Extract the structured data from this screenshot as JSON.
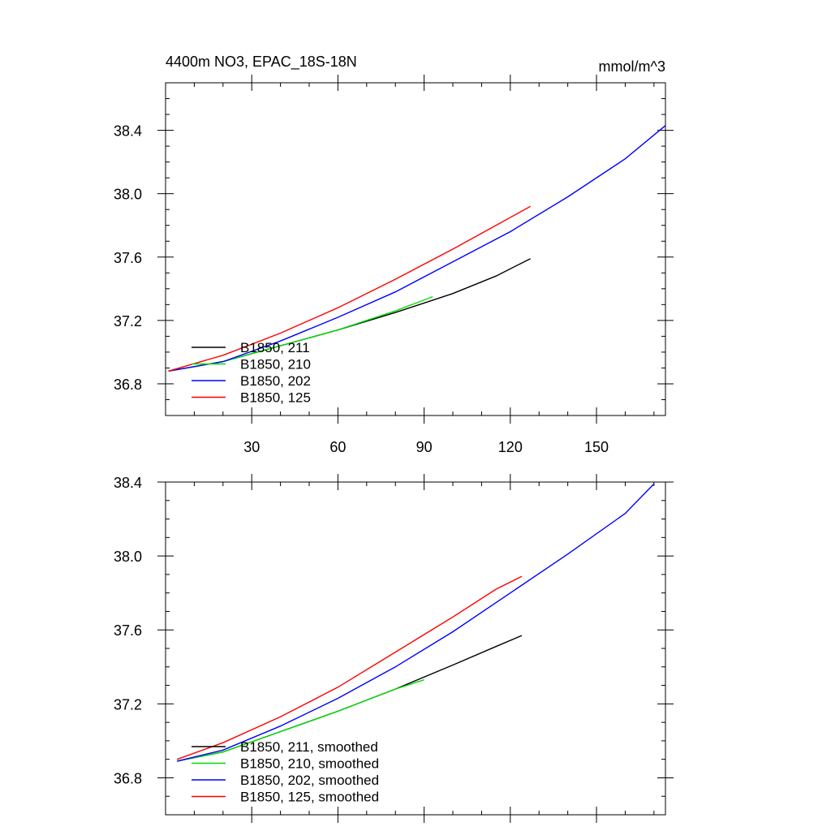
{
  "chart_data": [
    {
      "type": "line",
      "title": "4400m NO3, EPAC_18S-18N",
      "units": "mmol/m^3",
      "xlim": [
        0,
        174
      ],
      "ylim": [
        36.6,
        38.7
      ],
      "x_ticks": [
        30,
        60,
        90,
        120,
        150
      ],
      "y_ticks": [
        36.8,
        37.2,
        37.6,
        38.0,
        38.4
      ],
      "x_tick_labels": [
        "30",
        "60",
        "90",
        "120",
        "150"
      ],
      "y_tick_labels": [
        "36.8",
        "37.2",
        "37.6",
        "38.0",
        "38.4"
      ],
      "legend_position": "bottom-left",
      "series": [
        {
          "name": "B1850, 211",
          "color": "#000000",
          "x": [
            1,
            20,
            40,
            60,
            80,
            100,
            115,
            127
          ],
          "values": [
            36.88,
            36.94,
            37.04,
            37.14,
            37.25,
            37.37,
            37.48,
            37.59
          ]
        },
        {
          "name": "B1850, 210",
          "color": "#00dd00",
          "x": [
            1,
            20,
            40,
            60,
            80,
            93
          ],
          "values": [
            36.88,
            36.94,
            37.04,
            37.14,
            37.26,
            37.35
          ]
        },
        {
          "name": "B1850, 202",
          "color": "#0000ff",
          "x": [
            1,
            20,
            40,
            60,
            80,
            100,
            120,
            140,
            160,
            174
          ],
          "values": [
            36.88,
            36.94,
            37.07,
            37.22,
            37.38,
            37.57,
            37.76,
            37.98,
            38.22,
            38.43
          ]
        },
        {
          "name": "B1850, 125",
          "color": "#ff0000",
          "x": [
            1,
            20,
            40,
            60,
            80,
            100,
            115,
            127
          ],
          "values": [
            36.88,
            36.98,
            37.12,
            37.28,
            37.46,
            37.65,
            37.8,
            37.92
          ]
        }
      ]
    },
    {
      "type": "line",
      "title": "",
      "xlim": [
        0,
        174
      ],
      "ylim": [
        36.6,
        38.4
      ],
      "x_ticks": [
        30,
        60,
        90,
        120,
        150
      ],
      "y_ticks": [
        36.8,
        37.2,
        37.6,
        38.0,
        38.4
      ],
      "y_tick_labels": [
        "36.8",
        "37.2",
        "37.6",
        "38.0",
        "38.4"
      ],
      "legend_position": "bottom-left",
      "series": [
        {
          "name": "B1850, 211, smoothed",
          "color": "#000000",
          "x": [
            4,
            20,
            40,
            60,
            80,
            100,
            115,
            124
          ],
          "values": [
            36.89,
            36.94,
            37.05,
            37.16,
            37.28,
            37.41,
            37.51,
            37.57
          ]
        },
        {
          "name": "B1850, 210, smoothed",
          "color": "#00dd00",
          "x": [
            4,
            20,
            40,
            60,
            80,
            90
          ],
          "values": [
            36.89,
            36.94,
            37.05,
            37.16,
            37.28,
            37.33
          ]
        },
        {
          "name": "B1850, 202, smoothed",
          "color": "#0000ff",
          "x": [
            4,
            20,
            40,
            60,
            80,
            100,
            120,
            140,
            160,
            170
          ],
          "values": [
            36.89,
            36.95,
            37.08,
            37.23,
            37.4,
            37.59,
            37.8,
            38.01,
            38.23,
            38.39
          ]
        },
        {
          "name": "B1850, 125, smoothed",
          "color": "#ff0000",
          "x": [
            4,
            20,
            40,
            60,
            80,
            100,
            115,
            124
          ],
          "values": [
            36.9,
            36.99,
            37.13,
            37.29,
            37.48,
            37.67,
            37.82,
            37.89
          ]
        }
      ]
    }
  ]
}
